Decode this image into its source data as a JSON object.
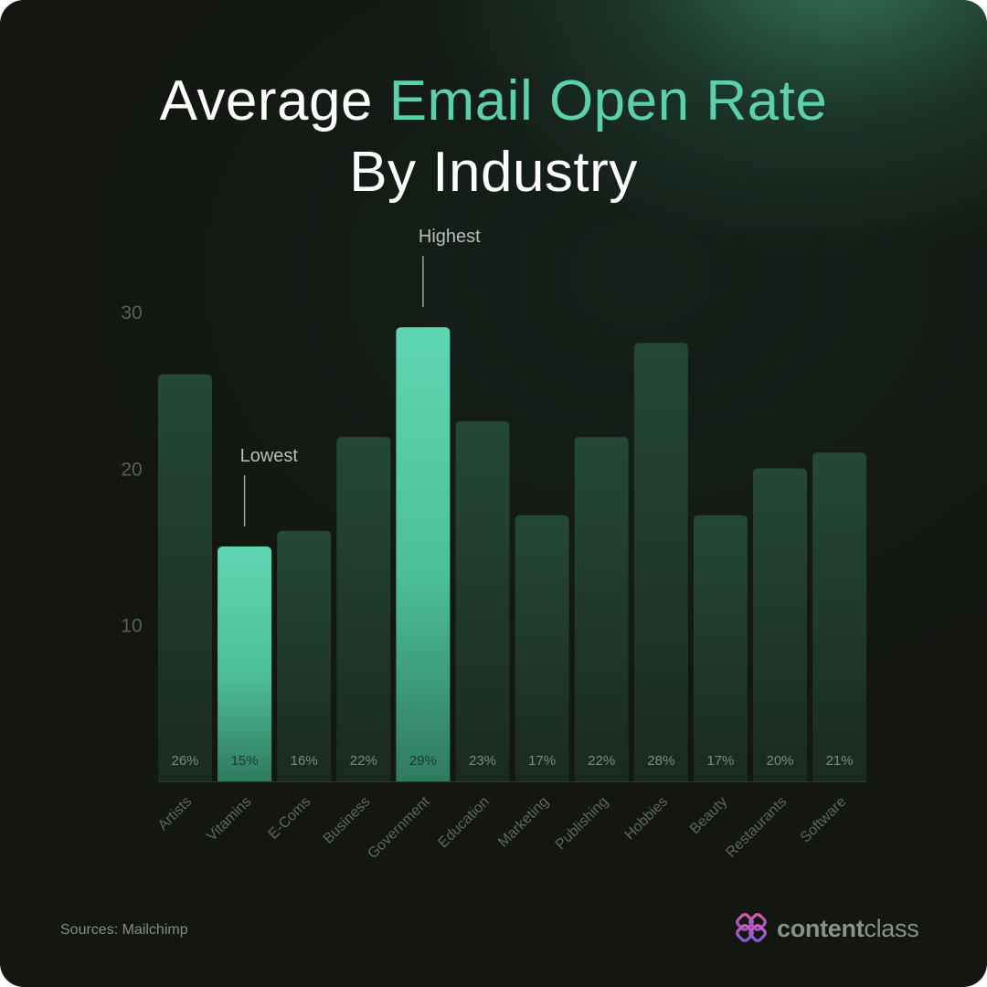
{
  "title": {
    "part1": "Average ",
    "accent": "Email Open Rate",
    "line2": "By Industry"
  },
  "chart_data": {
    "type": "bar",
    "categories": [
      "Artists",
      "Vitamins",
      "E-Coms",
      "Business",
      "Government",
      "Education",
      "Marketing",
      "Publishing",
      "Hobbies",
      "Beauty",
      "Restaurants",
      "Software"
    ],
    "values": [
      26,
      15,
      16,
      22,
      29,
      23,
      17,
      22,
      28,
      17,
      20,
      21
    ],
    "labels": [
      "26%",
      "15%",
      "16%",
      "22%",
      "29%",
      "23%",
      "17%",
      "22%",
      "28%",
      "17%",
      "20%",
      "21%"
    ],
    "yticks": [
      10,
      20,
      30
    ],
    "ylim": [
      0,
      30
    ],
    "grid": false,
    "highlighted": [
      "Vitamins",
      "Government"
    ],
    "annotations": [
      {
        "category": "Vitamins",
        "text": "Lowest"
      },
      {
        "category": "Government",
        "text": "Highest"
      }
    ]
  },
  "colors": {
    "bar": "#223a2e",
    "bar_highlight": "#5ccfac",
    "accent": "#5ccfac",
    "background": "#131611"
  },
  "footer": {
    "sources": "Sources: Mailchimp"
  },
  "brand": {
    "name_bold": "content",
    "name_regular": "class",
    "logo_icon": "contentclass-logo-icon"
  }
}
